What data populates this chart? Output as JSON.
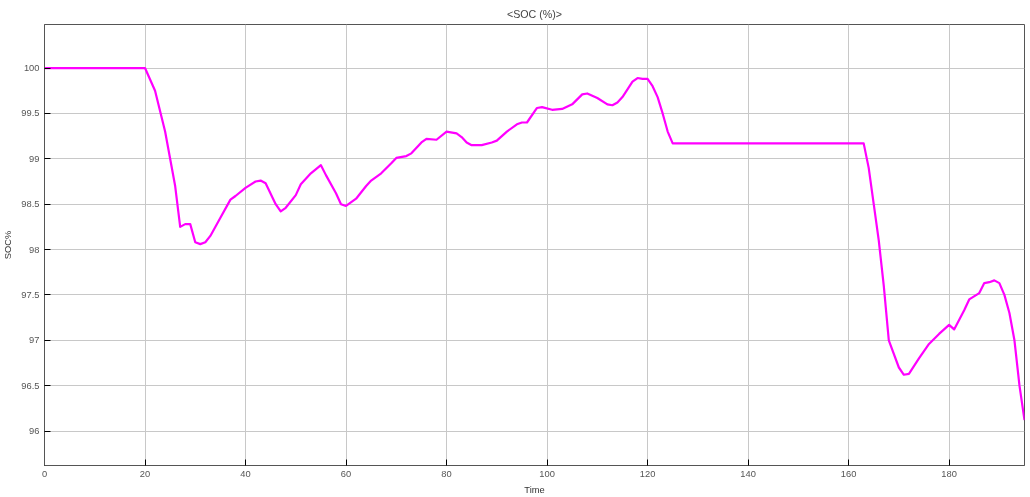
{
  "chart_data": {
    "type": "line",
    "title": "<SOC (%)>",
    "xlabel": "Time",
    "ylabel": "SOC%",
    "xlim": [
      0,
      195
    ],
    "ylim": [
      95.62,
      100.48
    ],
    "xticks": [
      0,
      20,
      40,
      60,
      80,
      100,
      120,
      140,
      160,
      180
    ],
    "yticks": [
      96,
      96.5,
      97,
      97.5,
      98,
      98.5,
      99,
      99.5,
      100
    ],
    "grid": true,
    "marker": "none",
    "line_style": "solid",
    "series": [
      {
        "color": "#ff00ff",
        "x": [
          0,
          20,
          22,
          24,
          26,
          27,
          28,
          29,
          30,
          31,
          32,
          33,
          35,
          37,
          38,
          40,
          42,
          43,
          44,
          46,
          47,
          48,
          50,
          51,
          53,
          55,
          56,
          58,
          59,
          60,
          62,
          64,
          65,
          67,
          69,
          70,
          72,
          73,
          75,
          76,
          78,
          80,
          82,
          83,
          84,
          85,
          87,
          89,
          90,
          92,
          94,
          95,
          96,
          98,
          99,
          101,
          103,
          105,
          107,
          108,
          110,
          112,
          113,
          114,
          115,
          117,
          118,
          119,
          120,
          121,
          122,
          123,
          124,
          125,
          163,
          164,
          165,
          166,
          167,
          168,
          170,
          171,
          172,
          174,
          176,
          178,
          180,
          181,
          183,
          184,
          186,
          187,
          188,
          189,
          190,
          191,
          192,
          193,
          194,
          195
        ],
        "values": [
          100,
          100,
          99.75,
          99.3,
          98.7,
          98.25,
          98.28,
          98.28,
          98.08,
          98.06,
          98.08,
          98.15,
          98.35,
          98.55,
          98.59,
          98.68,
          98.75,
          98.76,
          98.73,
          98.5,
          98.42,
          98.46,
          98.6,
          98.72,
          98.84,
          98.93,
          98.82,
          98.62,
          98.5,
          98.48,
          98.56,
          98.7,
          98.76,
          98.84,
          98.95,
          99.01,
          99.03,
          99.06,
          99.18,
          99.22,
          99.21,
          99.3,
          99.28,
          99.24,
          99.18,
          99.15,
          99.15,
          99.18,
          99.2,
          99.3,
          99.38,
          99.4,
          99.4,
          99.56,
          99.57,
          99.54,
          99.55,
          99.6,
          99.71,
          99.72,
          99.67,
          99.6,
          99.59,
          99.62,
          99.68,
          99.85,
          99.89,
          99.88,
          99.88,
          99.8,
          99.68,
          99.5,
          99.3,
          99.17,
          99.17,
          98.9,
          98.5,
          98.1,
          97.6,
          97.0,
          96.7,
          96.62,
          96.63,
          96.8,
          96.96,
          97.07,
          97.17,
          97.12,
          97.33,
          97.45,
          97.52,
          97.63,
          97.64,
          97.66,
          97.63,
          97.5,
          97.3,
          97.0,
          96.5,
          96.12
        ]
      }
    ]
  }
}
